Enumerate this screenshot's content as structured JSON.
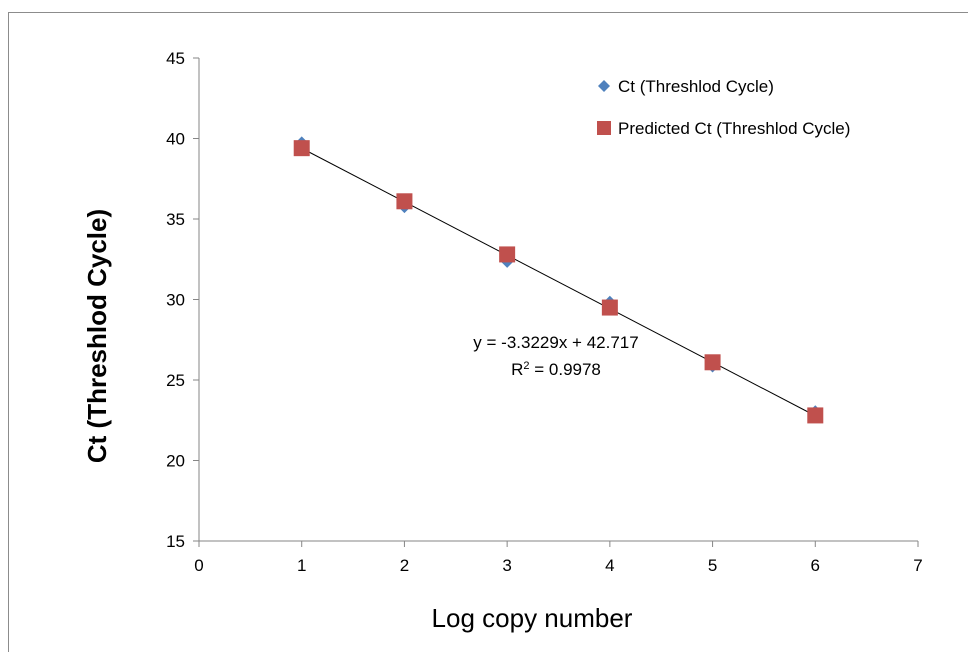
{
  "chart_data": {
    "type": "scatter",
    "xlabel": "Log copy number",
    "ylabel": "Ct (Threshlod Cycle)",
    "xlim": [
      0,
      7
    ],
    "ylim": [
      15,
      45
    ],
    "x_ticks": [
      "0",
      "1",
      "2",
      "3",
      "4",
      "5",
      "6",
      "7"
    ],
    "y_ticks": [
      "15",
      "20",
      "25",
      "30",
      "35",
      "40",
      "45"
    ],
    "grid": false,
    "legend_position": "top-right",
    "series": [
      {
        "name": "Ct (Threshlod Cycle)",
        "marker": "diamond",
        "color": "#4f81bd",
        "x": [
          1,
          2,
          3,
          4,
          5,
          6
        ],
        "y": [
          39.7,
          35.8,
          32.4,
          29.8,
          25.9,
          23.0
        ]
      },
      {
        "name": "Predicted Ct (Threshlod Cycle)",
        "marker": "square",
        "color": "#c0504d",
        "x": [
          1,
          2,
          3,
          4,
          5,
          6
        ],
        "y": [
          39.4,
          36.1,
          32.8,
          29.5,
          26.1,
          22.8
        ]
      }
    ],
    "trendline": {
      "slope": -3.3229,
      "intercept": 42.717,
      "x_range": [
        1,
        6
      ],
      "color": "#000000"
    },
    "annotation": {
      "equation": "y = -3.3229x + 42.717",
      "r_squared_prefix": "R",
      "r_squared_sup": "2",
      "r_squared_value": " = 0.9978"
    }
  }
}
